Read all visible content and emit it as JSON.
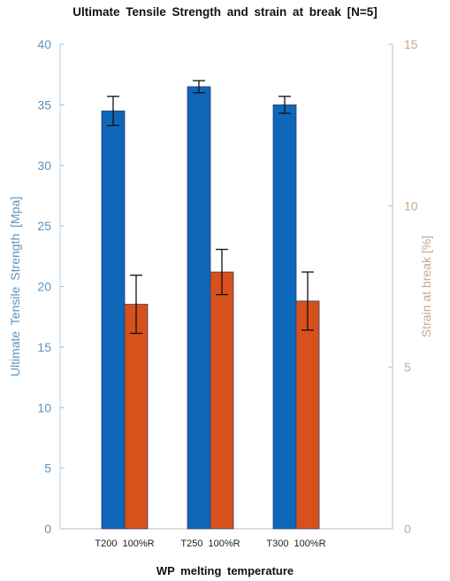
{
  "chart_data": {
    "type": "bar",
    "title": "Ultimate  Tensile  Strength  and  strain at break  [N=5]",
    "xlabel": "WP melting  temperature",
    "categories": [
      "T200  100%R",
      "T250  100%R",
      "T300  100%R"
    ],
    "series": [
      {
        "name": "Ultimate  Tensile  Strength  [Mpa]",
        "axis": "left",
        "color": "#0e67b9",
        "values": [
          34.5,
          36.5,
          35.0
        ],
        "error": [
          1.2,
          0.5,
          0.7
        ]
      },
      {
        "name": "Strain at break [%]",
        "axis": "right",
        "color": "#d8501c",
        "values": [
          6.95,
          7.95,
          7.05
        ],
        "error": [
          0.9,
          0.7,
          0.9
        ]
      }
    ],
    "y_left": {
      "label": "Ultimate  Tensile  Strength  [Mpa]",
      "ylim": [
        0,
        40
      ],
      "ticks": [
        "0",
        "5",
        "10",
        "15",
        "20",
        "25",
        "30",
        "35",
        "40"
      ],
      "color": "#5b93c0"
    },
    "y_right": {
      "label": "Strain at break [%]",
      "ylim": [
        0,
        15
      ],
      "ticks": [
        "0",
        "5",
        "10",
        "15"
      ],
      "color": "#c7a98c"
    },
    "grid": false,
    "legend": "none"
  }
}
